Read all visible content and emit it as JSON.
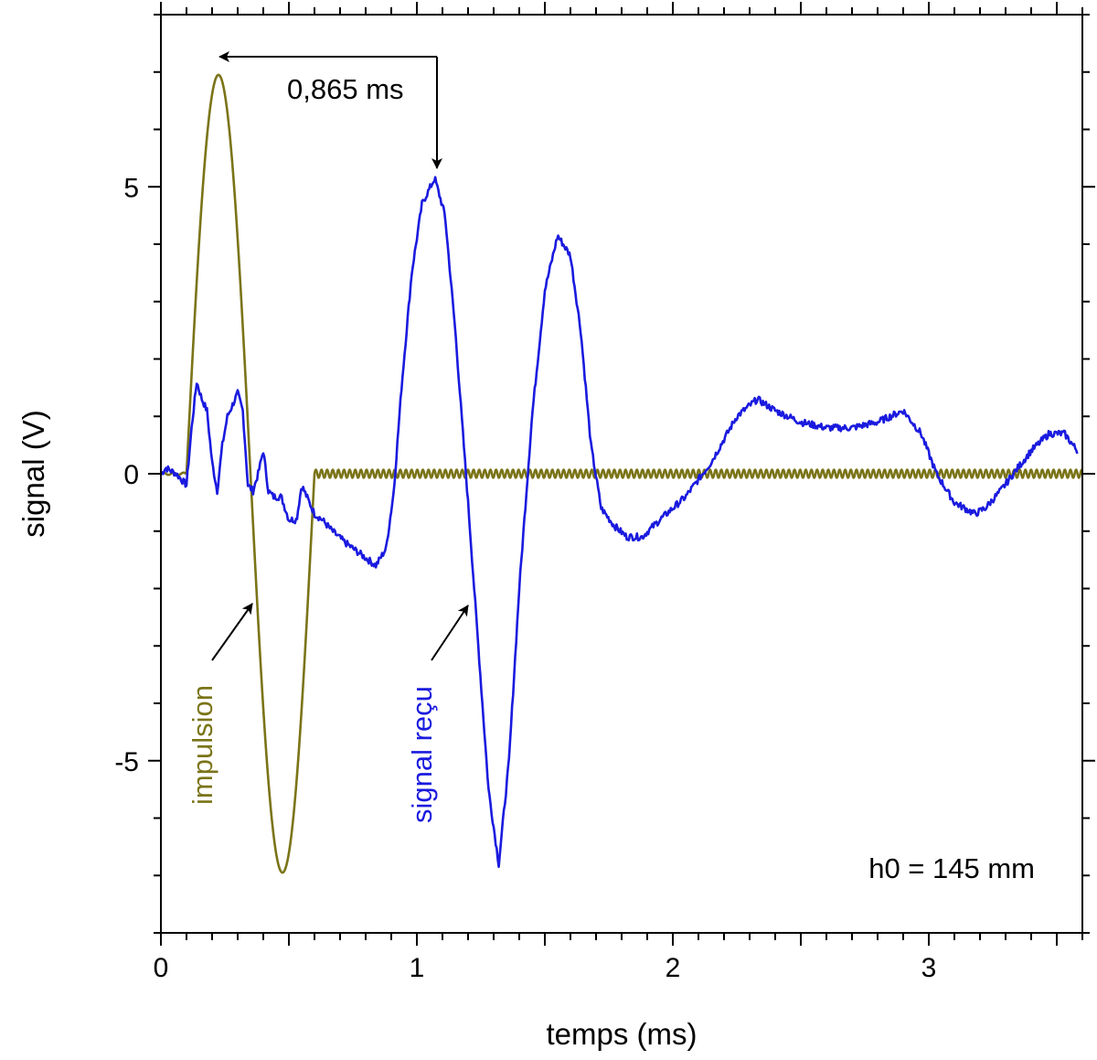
{
  "chart_data": {
    "type": "line",
    "xlabel": "temps (ms)",
    "ylabel": "signal (V)",
    "xlim": [
      0,
      3.6
    ],
    "ylim": [
      -8,
      8
    ],
    "x_ticks": [
      0,
      1,
      2,
      3
    ],
    "x_tick_labels": [
      "0",
      "1",
      "2",
      "3"
    ],
    "y_ticks": [
      -5,
      0,
      5
    ],
    "y_tick_labels": [
      "-5",
      "0",
      "5"
    ],
    "grid": false,
    "colors": {
      "impulsion": "#7a7418",
      "signal": "#1a1adf",
      "axis": "#000000"
    },
    "series": [
      {
        "name": "impulsion",
        "color": "#7a7418",
        "description_points": {
          "x": [
            0,
            0.1,
            0.22,
            0.35,
            0.47,
            0.6,
            3.6
          ],
          "y": [
            0,
            0,
            6.95,
            0,
            -6.95,
            0,
            0
          ]
        }
      },
      {
        "name": "signal reçu",
        "color": "#1a1adf",
        "x": [
          0,
          0.02,
          0.06,
          0.08,
          0.1,
          0.12,
          0.14,
          0.16,
          0.18,
          0.2,
          0.22,
          0.24,
          0.26,
          0.28,
          0.3,
          0.32,
          0.34,
          0.36,
          0.38,
          0.4,
          0.42,
          0.44,
          0.47,
          0.5,
          0.53,
          0.55,
          0.57,
          0.6,
          0.63,
          0.67,
          0.72,
          0.78,
          0.84,
          0.88,
          0.91,
          0.94,
          0.98,
          1.02,
          1.07,
          1.11,
          1.15,
          1.2,
          1.24,
          1.28,
          1.32,
          1.36,
          1.4,
          1.45,
          1.5,
          1.55,
          1.6,
          1.64,
          1.68,
          1.72,
          1.77,
          1.82,
          1.88,
          1.95,
          2.05,
          2.15,
          2.25,
          2.33,
          2.4,
          2.5,
          2.6,
          2.7,
          2.8,
          2.9,
          2.97,
          3.03,
          3.1,
          3.18,
          3.22,
          3.28,
          3.33,
          3.4,
          3.47,
          3.53,
          3.58
        ],
        "y": [
          0,
          0.1,
          0.0,
          -0.1,
          -0.2,
          0.8,
          1.6,
          1.3,
          1.1,
          0.2,
          -0.3,
          0.5,
          1.0,
          1.2,
          1.4,
          1.1,
          -0.2,
          -0.3,
          0.0,
          0.4,
          -0.3,
          -0.4,
          -0.4,
          -0.8,
          -0.8,
          -0.2,
          -0.4,
          -0.7,
          -0.8,
          -1.0,
          -1.2,
          -1.4,
          -1.6,
          -1.3,
          -0.3,
          1.5,
          3.5,
          4.7,
          5.15,
          4.5,
          2.5,
          -0.5,
          -3.0,
          -5.5,
          -6.8,
          -5.0,
          -2.0,
          1.0,
          3.2,
          4.15,
          3.8,
          2.5,
          0.5,
          -0.6,
          -0.9,
          -1.1,
          -1.1,
          -0.8,
          -0.4,
          0.2,
          1.0,
          1.3,
          1.1,
          0.9,
          0.8,
          0.8,
          0.9,
          1.1,
          0.7,
          0.0,
          -0.5,
          -0.7,
          -0.6,
          -0.3,
          0.0,
          0.4,
          0.7,
          0.7,
          0.4
        ]
      }
    ],
    "annotations": [
      {
        "id": "delay",
        "text": "0,865 ms"
      },
      {
        "id": "impulsion-label",
        "text": "impulsion"
      },
      {
        "id": "signal-label",
        "text": "signal reçu"
      },
      {
        "id": "h0-label",
        "text": "h0 = 145 mm"
      }
    ]
  }
}
